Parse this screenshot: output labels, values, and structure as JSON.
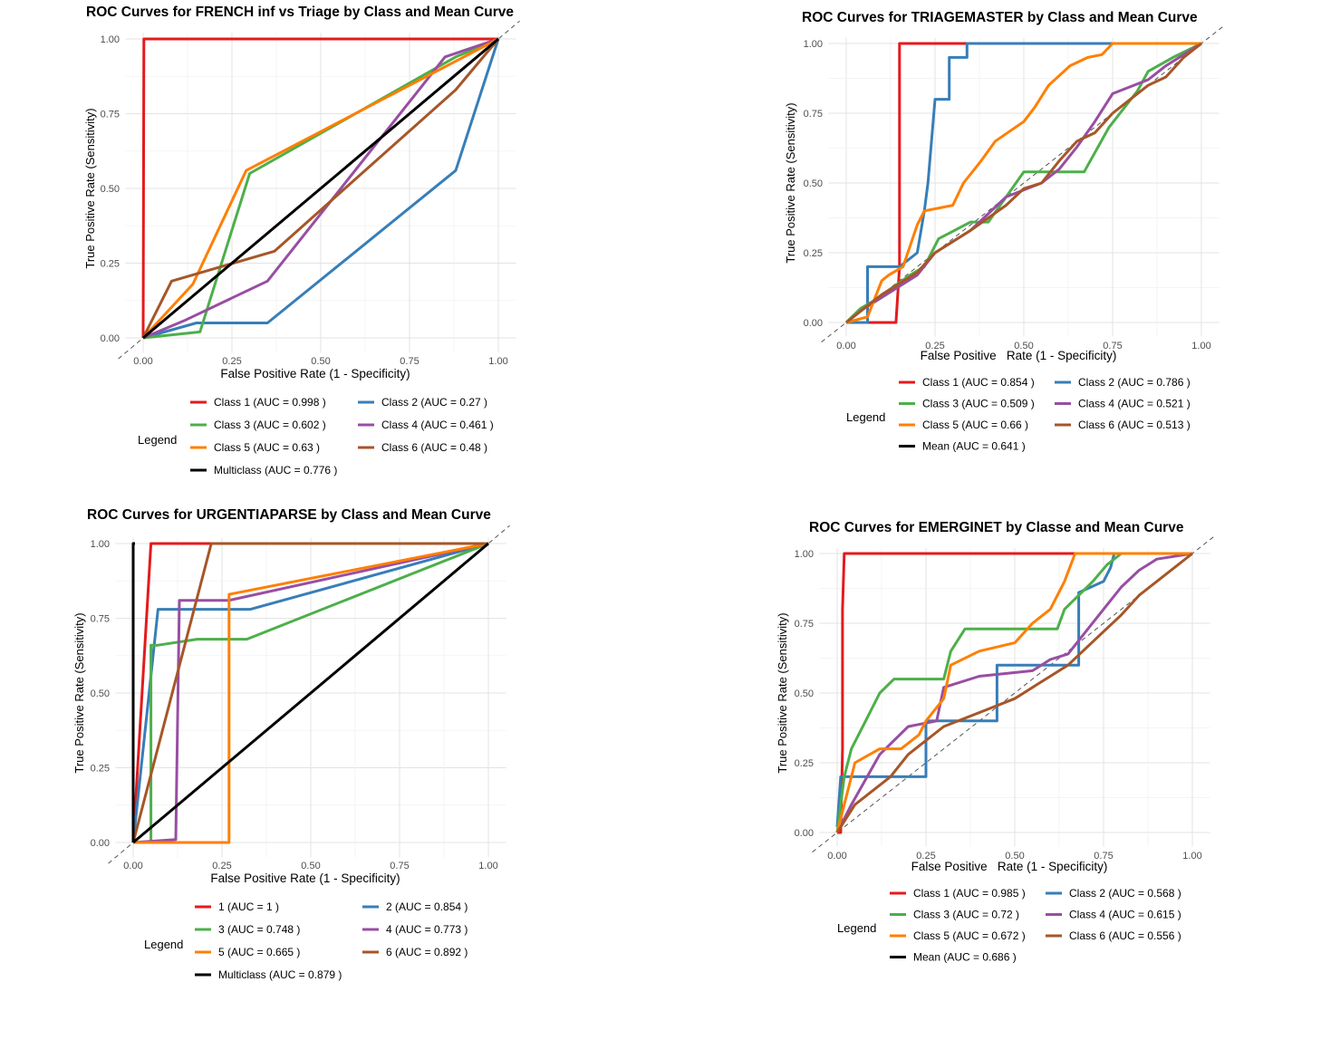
{
  "chart_data": [
    {
      "type": "line",
      "title": "ROC Curves for FRENCH inf vs Triage by Class and Mean Curve",
      "xlabel": "False Positive Rate (1 - Specificity)",
      "ylabel": "True Positive Rate (Sensitivity)",
      "xlim": [
        0,
        1
      ],
      "ylim": [
        0,
        1
      ],
      "ticks": [
        "0.00",
        "0.25",
        "0.50",
        "0.75",
        "1.00"
      ],
      "grid": true,
      "legend_title": "Legend",
      "legend_position": "bottom",
      "series": [
        {
          "name": "Class 1 (AUC = 0.998 )",
          "color": "#e41a1c",
          "x": [
            0,
            0.002,
            0.005,
            1
          ],
          "y": [
            0,
            1,
            1,
            1
          ]
        },
        {
          "name": "Class 2 (AUC = 0.27 )",
          "color": "#377eb8",
          "x": [
            0,
            0.15,
            0.35,
            0.88,
            1
          ],
          "y": [
            0,
            0.05,
            0.05,
            0.56,
            1
          ]
        },
        {
          "name": "Class 3 (AUC = 0.602 )",
          "color": "#4daf4a",
          "x": [
            0,
            0.16,
            0.3,
            0.88,
            1
          ],
          "y": [
            0,
            0.02,
            0.55,
            0.94,
            1
          ]
        },
        {
          "name": "Class 4 (AUC = 0.461 )",
          "color": "#984ea3",
          "x": [
            0,
            0.12,
            0.35,
            0.85,
            1
          ],
          "y": [
            0,
            0.06,
            0.19,
            0.94,
            1
          ]
        },
        {
          "name": "Class 5 (AUC = 0.63 )",
          "color": "#ff7f00",
          "x": [
            0,
            0.14,
            0.29,
            1
          ],
          "y": [
            0,
            0.18,
            0.56,
            1
          ]
        },
        {
          "name": "Class 6 (AUC = 0.48 )",
          "color": "#a65628",
          "x": [
            0,
            0.08,
            0.37,
            0.88,
            1
          ],
          "y": [
            0,
            0.19,
            0.29,
            0.83,
            1
          ]
        },
        {
          "name": "Multiclass (AUC = 0.776 )",
          "color": "#000000",
          "x": [
            0,
            1
          ],
          "y": [
            0,
            1
          ]
        }
      ]
    },
    {
      "type": "line",
      "title": "ROC Curves for TRIAGEMASTER by Class and Mean Curve",
      "xlabel": "False Positive   Rate (1 - Specificity)",
      "ylabel": "True Positive Rate (Sensitivity)",
      "xlim": [
        0,
        1
      ],
      "ylim": [
        0,
        1
      ],
      "ticks": [
        "0.00",
        "0.25",
        "0.50",
        "0.75",
        "1.00"
      ],
      "grid": true,
      "legend_title": "Legend",
      "legend_position": "bottom",
      "series": [
        {
          "name": "Class 1 (AUC = 0.854 )",
          "color": "#e41a1c",
          "x": [
            0,
            0.14,
            0.15,
            0.15,
            0.16,
            1
          ],
          "y": [
            0,
            0,
            0.2,
            1,
            1,
            1
          ]
        },
        {
          "name": "Class 2 (AUC = 0.786 )",
          "color": "#377eb8",
          "x": [
            0,
            0.06,
            0.06,
            0.15,
            0.2,
            0.22,
            0.23,
            0.25,
            0.29,
            0.29,
            0.34,
            0.34,
            1
          ],
          "y": [
            0,
            0,
            0.2,
            0.2,
            0.25,
            0.4,
            0.5,
            0.8,
            0.8,
            0.95,
            0.95,
            1,
            1
          ]
        },
        {
          "name": "Class 3 (AUC = 0.509 )",
          "color": "#4daf4a",
          "x": [
            0,
            0.04,
            0.08,
            0.18,
            0.22,
            0.26,
            0.35,
            0.4,
            0.5,
            0.58,
            0.67,
            0.74,
            0.82,
            0.85,
            0.92,
            1
          ],
          "y": [
            0,
            0.05,
            0.08,
            0.17,
            0.2,
            0.3,
            0.36,
            0.36,
            0.54,
            0.54,
            0.54,
            0.7,
            0.83,
            0.9,
            0.95,
            1
          ]
        },
        {
          "name": "Class 4 (AUC = 0.521 )",
          "color": "#984ea3",
          "x": [
            0,
            0.05,
            0.1,
            0.2,
            0.25,
            0.35,
            0.45,
            0.55,
            0.6,
            0.65,
            0.7,
            0.75,
            0.85,
            0.9,
            0.95,
            1
          ],
          "y": [
            0,
            0.05,
            0.09,
            0.17,
            0.25,
            0.33,
            0.45,
            0.5,
            0.55,
            0.63,
            0.72,
            0.82,
            0.87,
            0.92,
            0.96,
            1
          ]
        },
        {
          "name": "Class 5 (AUC = 0.66 )",
          "color": "#ff7f00",
          "x": [
            0,
            0.06,
            0.1,
            0.12,
            0.16,
            0.2,
            0.22,
            0.3,
            0.33,
            0.38,
            0.42,
            0.5,
            0.53,
            0.57,
            0.63,
            0.68,
            0.72,
            0.75,
            0.8,
            1
          ],
          "y": [
            0,
            0.02,
            0.15,
            0.17,
            0.2,
            0.35,
            0.4,
            0.42,
            0.5,
            0.58,
            0.65,
            0.72,
            0.77,
            0.85,
            0.92,
            0.95,
            0.96,
            1,
            1,
            1
          ]
        },
        {
          "name": "Class 6 (AUC = 0.513 )",
          "color": "#a65628",
          "x": [
            0,
            0.05,
            0.1,
            0.2,
            0.25,
            0.35,
            0.45,
            0.5,
            0.55,
            0.6,
            0.65,
            0.7,
            0.75,
            0.8,
            0.85,
            0.9,
            0.95,
            1
          ],
          "y": [
            0,
            0.05,
            0.1,
            0.18,
            0.25,
            0.33,
            0.42,
            0.48,
            0.5,
            0.58,
            0.65,
            0.68,
            0.75,
            0.8,
            0.85,
            0.88,
            0.95,
            1
          ]
        },
        {
          "name": "Mean (AUC = 0.641 )",
          "color": "#000000",
          "x": [],
          "y": []
        }
      ]
    },
    {
      "type": "line",
      "title": "ROC Curves for URGENTIAPARSE by Class and Mean Curve",
      "xlabel": "False Positive Rate (1 - Specificity)",
      "ylabel": "True Positive Rate (Sensitivity)",
      "xlim": [
        0,
        1
      ],
      "ylim": [
        0,
        1
      ],
      "ticks": [
        "0.00",
        "0.25",
        "0.50",
        "0.75",
        "1.00"
      ],
      "grid": true,
      "legend_title": "Legend",
      "legend_position": "bottom",
      "series": [
        {
          "name": "1 (AUC = 1 )",
          "color": "#e41a1c",
          "x": [
            0,
            0.05,
            1
          ],
          "y": [
            0,
            1,
            1
          ]
        },
        {
          "name": "2 (AUC = 0.854 )",
          "color": "#377eb8",
          "x": [
            0,
            0.07,
            0.33,
            1
          ],
          "y": [
            0,
            0.78,
            0.78,
            1
          ]
        },
        {
          "name": "3 (AUC = 0.748 )",
          "color": "#4daf4a",
          "x": [
            0,
            0.05,
            0.05,
            0.07,
            0.18,
            0.32,
            1
          ],
          "y": [
            0,
            0,
            0.66,
            0.66,
            0.68,
            0.68,
            1
          ]
        },
        {
          "name": "4 (AUC = 0.773 )",
          "color": "#984ea3",
          "x": [
            0,
            0.12,
            0.13,
            0.27,
            1
          ],
          "y": [
            0,
            0.01,
            0.81,
            0.81,
            1
          ]
        },
        {
          "name": "5 (AUC = 0.665 )",
          "color": "#ff7f00",
          "x": [
            0,
            0.27,
            0.27,
            1
          ],
          "y": [
            0,
            0,
            0.83,
            1
          ]
        },
        {
          "name": "6 (AUC = 0.892 )",
          "color": "#a65628",
          "x": [
            0,
            0.22,
            1
          ],
          "y": [
            0,
            1,
            1
          ]
        },
        {
          "name": "Multiclass (AUC = 0.879 )",
          "color": "#000000",
          "x": [
            0,
            1
          ],
          "y": [
            0,
            1
          ]
        },
        {
          "name": "",
          "color": "#000000",
          "x": [
            0,
            0,
            0.005
          ],
          "y": [
            0,
            1,
            1
          ]
        }
      ]
    },
    {
      "type": "line",
      "title": "ROC Curves for EMERGINET by Classe and Mean Curve",
      "xlabel": "False Positive   Rate (1 - Specificity)",
      "ylabel": "True Positive Rate (Sensitivity)",
      "xlim": [
        0,
        1
      ],
      "ylim": [
        0,
        1
      ],
      "ticks": [
        "0.00",
        "0.25",
        "0.50",
        "0.75",
        "1.00"
      ],
      "grid": true,
      "legend_title": "Legend",
      "legend_position": "bottom",
      "series": [
        {
          "name": "Class 1 (AUC = 0.985 )",
          "color": "#e41a1c",
          "x": [
            0,
            0.01,
            0.015,
            0.015,
            0.02,
            1
          ],
          "y": [
            0,
            0,
            0.3,
            0.8,
            1,
            1
          ]
        },
        {
          "name": "Class 2 (AUC = 0.568 )",
          "color": "#377eb8",
          "x": [
            0,
            0.01,
            0.04,
            0.25,
            0.25,
            0.45,
            0.45,
            0.68,
            0.68,
            0.75,
            0.77,
            0.78,
            1
          ],
          "y": [
            0.02,
            0.2,
            0.2,
            0.2,
            0.4,
            0.4,
            0.6,
            0.6,
            0.86,
            0.9,
            0.95,
            1,
            1
          ]
        },
        {
          "name": "Class 3 (AUC = 0.72 )",
          "color": "#4daf4a",
          "x": [
            0,
            0.02,
            0.04,
            0.08,
            0.12,
            0.16,
            0.3,
            0.32,
            0.36,
            0.44,
            0.62,
            0.64,
            0.72,
            0.76,
            0.8,
            1
          ],
          "y": [
            0,
            0.2,
            0.3,
            0.4,
            0.5,
            0.55,
            0.55,
            0.65,
            0.73,
            0.73,
            0.73,
            0.8,
            0.9,
            0.96,
            1,
            1
          ]
        },
        {
          "name": "Class 4 (AUC = 0.615 )",
          "color": "#984ea3",
          "x": [
            0,
            0.04,
            0.12,
            0.2,
            0.28,
            0.3,
            0.4,
            0.55,
            0.6,
            0.65,
            0.7,
            0.75,
            0.8,
            0.85,
            0.9,
            1
          ],
          "y": [
            0,
            0.1,
            0.28,
            0.38,
            0.4,
            0.52,
            0.56,
            0.58,
            0.62,
            0.64,
            0.72,
            0.8,
            0.88,
            0.94,
            0.98,
            1
          ]
        },
        {
          "name": "Class 5 (AUC = 0.672 )",
          "color": "#ff7f00",
          "x": [
            0,
            0.02,
            0.05,
            0.12,
            0.18,
            0.23,
            0.25,
            0.3,
            0.32,
            0.4,
            0.5,
            0.55,
            0.6,
            0.64,
            0.67,
            1
          ],
          "y": [
            0,
            0.1,
            0.25,
            0.3,
            0.3,
            0.35,
            0.4,
            0.48,
            0.6,
            0.65,
            0.68,
            0.75,
            0.8,
            0.9,
            1,
            1
          ]
        },
        {
          "name": "Class 6 (AUC = 0.556 )",
          "color": "#a65628",
          "x": [
            0,
            0.05,
            0.1,
            0.15,
            0.2,
            0.25,
            0.3,
            0.4,
            0.5,
            0.55,
            0.6,
            0.65,
            0.7,
            0.75,
            0.8,
            0.85,
            0.9,
            0.95,
            1
          ],
          "y": [
            0,
            0.1,
            0.15,
            0.2,
            0.28,
            0.33,
            0.38,
            0.43,
            0.48,
            0.52,
            0.56,
            0.6,
            0.66,
            0.72,
            0.78,
            0.85,
            0.9,
            0.95,
            1
          ]
        },
        {
          "name": "Mean (AUC = 0.686 )",
          "color": "#000000",
          "x": [],
          "y": []
        }
      ]
    }
  ]
}
